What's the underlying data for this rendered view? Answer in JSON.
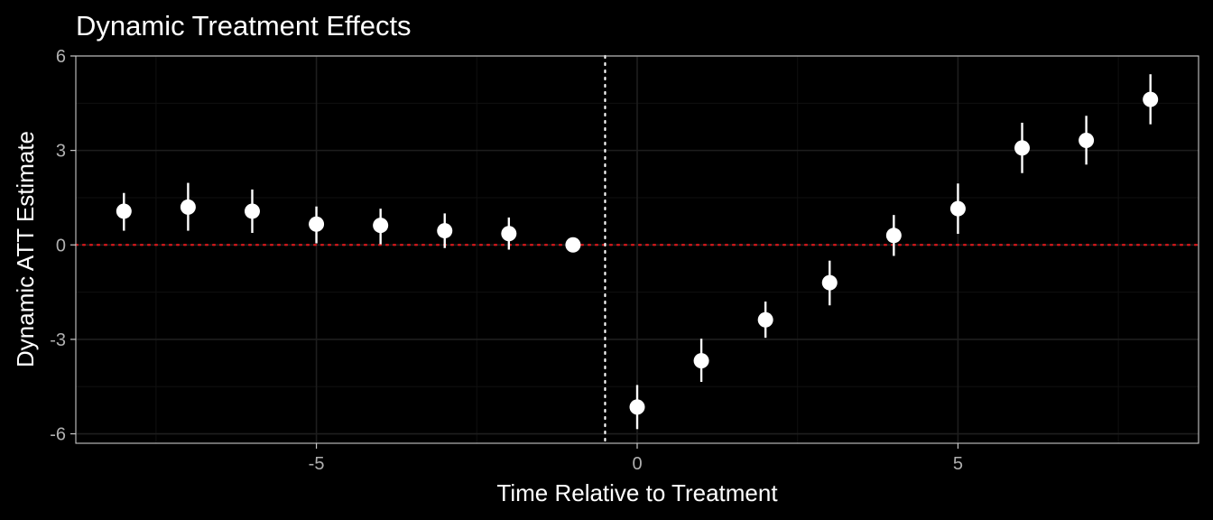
{
  "chart_data": {
    "type": "scatter",
    "title": "Dynamic Treatment Effects",
    "xlabel": "Time Relative to Treatment",
    "ylabel": "Dynamic ATT Estimate",
    "xlim": [
      -8.75,
      8.75
    ],
    "ylim": [
      -6.3,
      6.0
    ],
    "xticks": [
      -5,
      0,
      5
    ],
    "xtick_labels": [
      "-5",
      "0",
      "5"
    ],
    "yticks": [
      -6,
      -3,
      0,
      3,
      6
    ],
    "ytick_labels": [
      "-6",
      "-3",
      "0",
      "3",
      "6"
    ],
    "grid": true,
    "legend": "none",
    "reference_lines": {
      "horizontal_y": 0,
      "horizontal_color": "#d7191c",
      "vertical_x": -0.5,
      "vertical_color": "#ffffff"
    },
    "points": [
      {
        "x": -8,
        "y": 1.07,
        "lower": 0.45,
        "upper": 1.65
      },
      {
        "x": -7,
        "y": 1.2,
        "lower": 0.45,
        "upper": 1.97
      },
      {
        "x": -6,
        "y": 1.07,
        "lower": 0.38,
        "upper": 1.76
      },
      {
        "x": -5,
        "y": 0.66,
        "lower": 0.05,
        "upper": 1.22
      },
      {
        "x": -4,
        "y": 0.62,
        "lower": 0.02,
        "upper": 1.15
      },
      {
        "x": -3,
        "y": 0.45,
        "lower": -0.1,
        "upper": 1.0
      },
      {
        "x": -2,
        "y": 0.36,
        "lower": -0.15,
        "upper": 0.87
      },
      {
        "x": -1,
        "y": 0.0,
        "lower": 0.0,
        "upper": 0.0
      },
      {
        "x": 0,
        "y": -5.15,
        "lower": -5.85,
        "upper": -4.45
      },
      {
        "x": 1,
        "y": -3.68,
        "lower": -4.35,
        "upper": -2.98
      },
      {
        "x": 2,
        "y": -2.38,
        "lower": -2.95,
        "upper": -1.8
      },
      {
        "x": 3,
        "y": -1.2,
        "lower": -1.92,
        "upper": -0.5
      },
      {
        "x": 4,
        "y": 0.3,
        "lower": -0.35,
        "upper": 0.95
      },
      {
        "x": 5,
        "y": 1.15,
        "lower": 0.35,
        "upper": 1.95
      },
      {
        "x": 6,
        "y": 3.08,
        "lower": 2.28,
        "upper": 3.88
      },
      {
        "x": 7,
        "y": 3.32,
        "lower": 2.55,
        "upper": 4.1
      },
      {
        "x": 8,
        "y": 4.62,
        "lower": 3.83,
        "upper": 5.42
      }
    ],
    "colors": {
      "background": "#000000",
      "panel_border": "#c8c8c8",
      "grid_major": "#1e1e1e",
      "grid_minor": "#101010",
      "points": "#ffffff",
      "tick_labels": "#b0b0b0",
      "text": "#ffffff"
    }
  }
}
